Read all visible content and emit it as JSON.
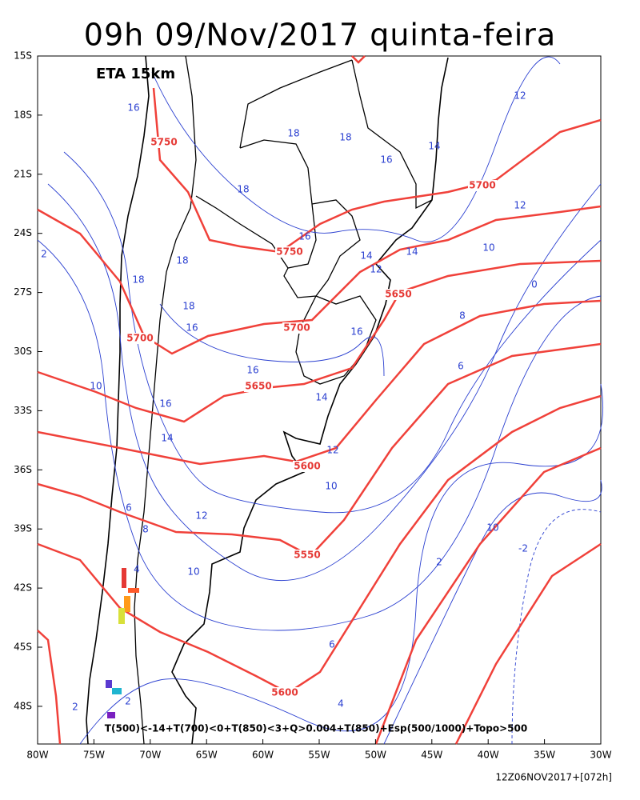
{
  "title": "09h 09/Nov/2017 quinta-feira",
  "model_label": "ETA 15km",
  "formula": "T(500)<-14+T(700)<0+T(850)<3+Q>0.004+T(850)+Esp(500/1000)+Topo>500",
  "run_label": "12Z06NOV2017+[072h]",
  "lat_labels": [
    "15S",
    "18S",
    "21S",
    "24S",
    "27S",
    "30S",
    "33S",
    "36S",
    "39S",
    "42S",
    "45S",
    "48S"
  ],
  "lon_labels": [
    "80W",
    "75W",
    "70W",
    "65W",
    "60W",
    "55W",
    "50W",
    "45W",
    "40W",
    "35W",
    "30W"
  ],
  "height_contour_labels": [
    "5750",
    "5750",
    "5700",
    "5700",
    "5700",
    "5650",
    "5650",
    "5600",
    "5550",
    "5600"
  ],
  "temperature_contour_labels": [
    "16",
    "18",
    "18",
    "16",
    "14",
    "12",
    "18",
    "16",
    "12",
    "2",
    "18",
    "14",
    "12",
    "14",
    "10",
    "18",
    "0",
    "18",
    "16",
    "8",
    "16",
    "16",
    "6",
    "10",
    "14",
    "16",
    "14",
    "12",
    "10",
    "6",
    "12",
    "8",
    "10",
    "-2",
    "2",
    "10",
    "4",
    "6",
    "4",
    "2",
    "2"
  ]
}
